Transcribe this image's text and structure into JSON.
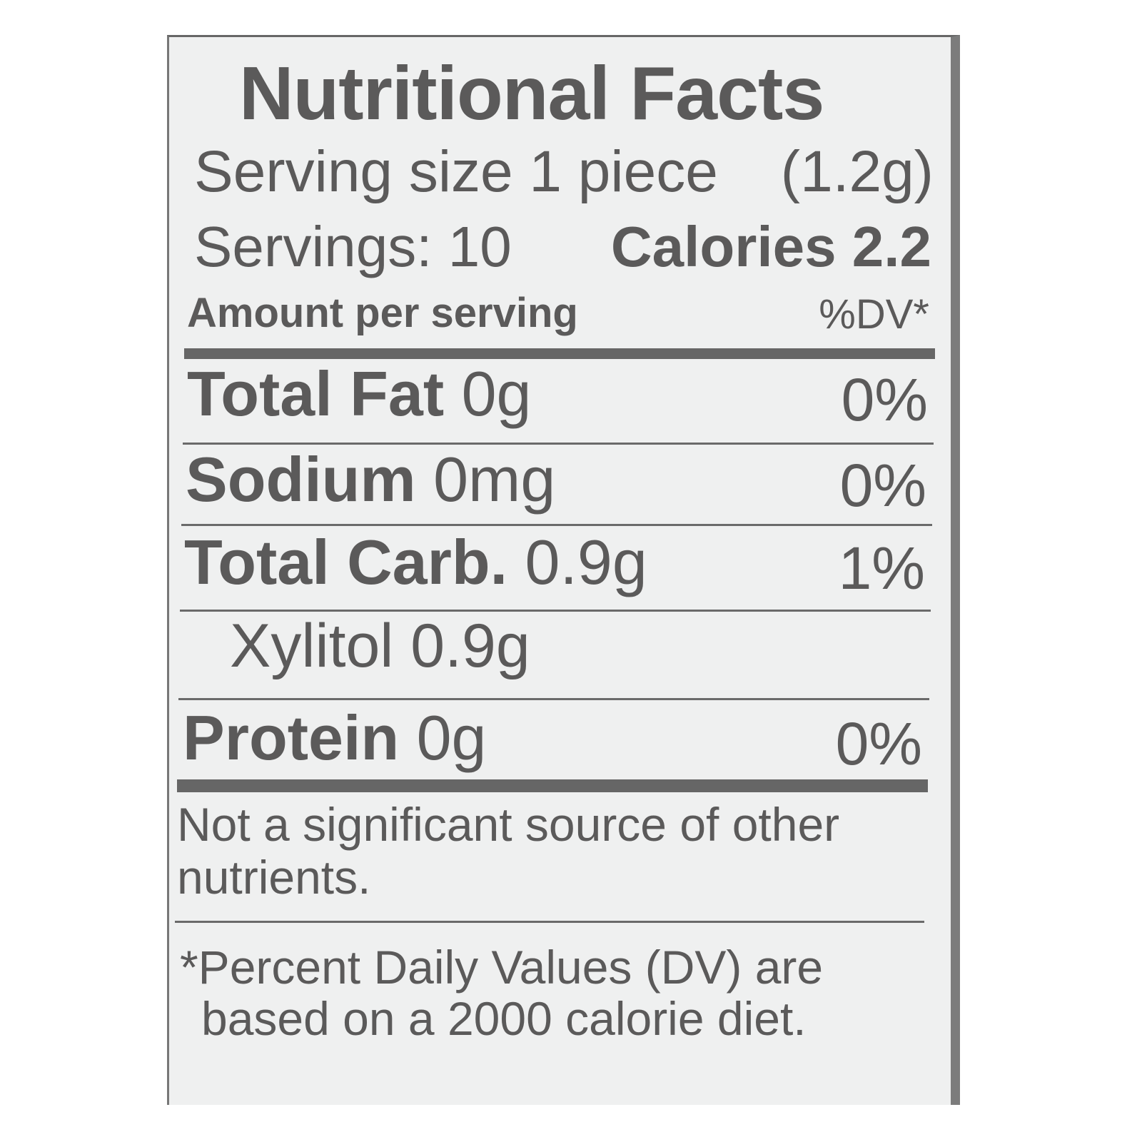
{
  "label": {
    "title": "Nutritional Facts",
    "serving_size_label": "Serving size 1 piece",
    "serving_size_weight": "(1.2g)",
    "servings": "Servings: 10",
    "calories": "Calories 2.2",
    "amount_header": "Amount per serving",
    "dv_header": "%DV*",
    "nutrients": [
      {
        "name": "Total Fat",
        "amount": "0g",
        "dv": "0%"
      },
      {
        "name": "Sodium",
        "amount": "0mg",
        "dv": "0%"
      },
      {
        "name": "Total Carb.",
        "amount": "0.9g",
        "dv": "1%"
      },
      {
        "name": "Xylitol 0.9g",
        "amount": "",
        "dv": ""
      },
      {
        "name": "Protein",
        "amount": "0g",
        "dv": "0%"
      }
    ],
    "note_line1": "Not a significant source of other",
    "note_line2": "nutrients.",
    "footnote_line1": "*Percent Daily Values (DV) are",
    "footnote_line2": "based on a 2000 calorie diet."
  },
  "colors": {
    "text": "#5b5a5a",
    "background": "#eff0f0",
    "rule": "#666666"
  }
}
